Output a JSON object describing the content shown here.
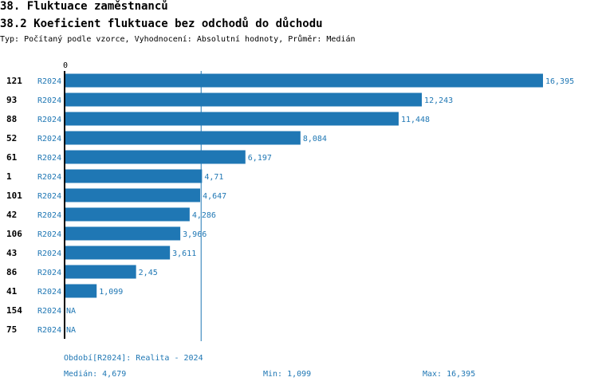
{
  "header": {
    "title": "38. Fluktuace zaměstnanců",
    "subtitle": "38.2 Koeficient fluktuace bez odchodů do důchodu",
    "description": "Typ: Počítaný podle vzorce, Vyhodnocení: Absolutní hodnoty, Průměr: Medián"
  },
  "chart_data": {
    "type": "bar",
    "orientation": "horizontal",
    "x_tick": "0",
    "xlim": [
      0,
      16.395
    ],
    "median": 4.679,
    "rows": [
      {
        "id": "121",
        "series": "R2024",
        "value": 16.395,
        "label": "16,395"
      },
      {
        "id": "93",
        "series": "R2024",
        "value": 12.243,
        "label": "12,243"
      },
      {
        "id": "88",
        "series": "R2024",
        "value": 11.448,
        "label": "11,448"
      },
      {
        "id": "52",
        "series": "R2024",
        "value": 8.084,
        "label": "8,084"
      },
      {
        "id": "61",
        "series": "R2024",
        "value": 6.197,
        "label": "6,197"
      },
      {
        "id": "1",
        "series": "R2024",
        "value": 4.71,
        "label": "4,71"
      },
      {
        "id": "101",
        "series": "R2024",
        "value": 4.647,
        "label": "4,647"
      },
      {
        "id": "42",
        "series": "R2024",
        "value": 4.286,
        "label": "4,286"
      },
      {
        "id": "106",
        "series": "R2024",
        "value": 3.966,
        "label": "3,966"
      },
      {
        "id": "43",
        "series": "R2024",
        "value": 3.611,
        "label": "3,611"
      },
      {
        "id": "86",
        "series": "R2024",
        "value": 2.45,
        "label": "2,45"
      },
      {
        "id": "41",
        "series": "R2024",
        "value": 1.099,
        "label": "1,099"
      },
      {
        "id": "154",
        "series": "R2024",
        "value": null,
        "label": "NA"
      },
      {
        "id": "75",
        "series": "R2024",
        "value": null,
        "label": "NA"
      }
    ],
    "colors": {
      "bar": "#1f77b4",
      "text_accent": "#1f77b4",
      "median_line": "#1f77b4"
    }
  },
  "footer": {
    "period": "Období[R2024]: Realita - 2024",
    "median": "Medián: 4,679",
    "min": "Min: 1,099",
    "max": "Max: 16,395"
  }
}
